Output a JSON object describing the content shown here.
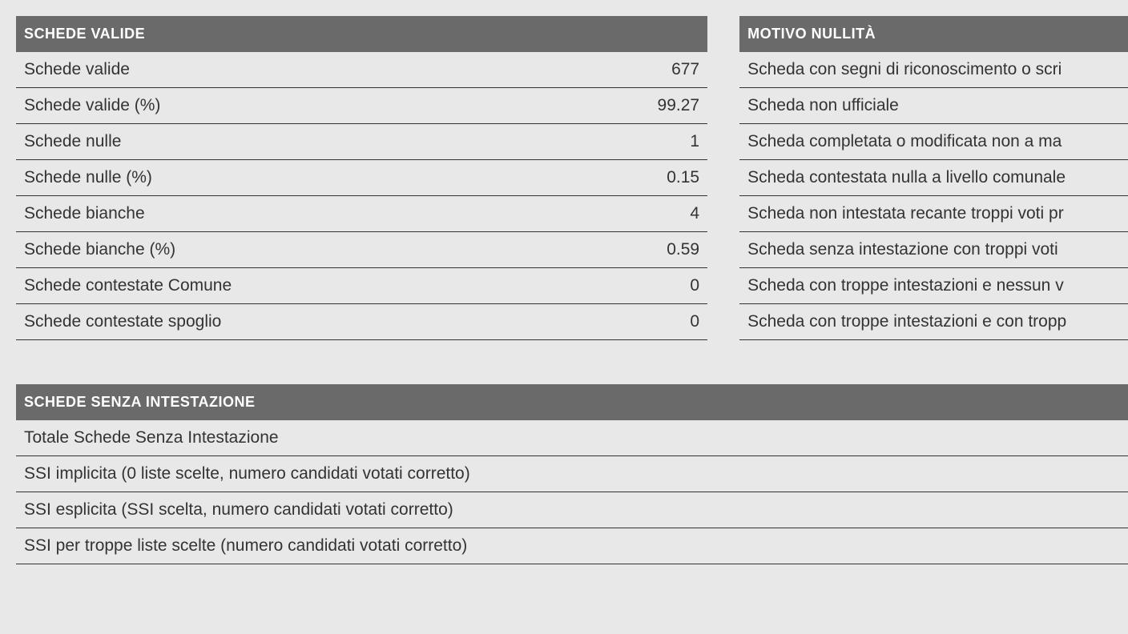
{
  "schedeValide": {
    "header": "SCHEDE VALIDE",
    "rows": [
      {
        "label": "Schede valide",
        "value": "677"
      },
      {
        "label": "Schede valide (%)",
        "value": "99.27"
      },
      {
        "label": "Schede nulle",
        "value": "1"
      },
      {
        "label": "Schede nulle (%)",
        "value": "0.15"
      },
      {
        "label": "Schede bianche",
        "value": "4"
      },
      {
        "label": "Schede bianche (%)",
        "value": "0.59"
      },
      {
        "label": "Schede contestate Comune",
        "value": "0"
      },
      {
        "label": "Schede contestate spoglio",
        "value": "0"
      }
    ]
  },
  "motivoNullita": {
    "header": "MOTIVO NULLITÀ",
    "rows": [
      {
        "label": "Scheda con segni di riconoscimento o scri"
      },
      {
        "label": "Scheda non ufficiale"
      },
      {
        "label": "Scheda completata o modificata non a ma"
      },
      {
        "label": "Scheda contestata nulla a livello comunale"
      },
      {
        "label": "Scheda non intestata recante troppi voti pr"
      },
      {
        "label": "Scheda senza intestazione con troppi voti"
      },
      {
        "label": "Scheda con troppe intestazioni e nessun v"
      },
      {
        "label": "Scheda con troppe intestazioni e con tropp"
      }
    ]
  },
  "schedeSenzaIntestazione": {
    "header": "SCHEDE SENZA INTESTAZIONE",
    "rows": [
      {
        "label": "Totale Schede Senza Intestazione"
      },
      {
        "label": "SSI implicita (0 liste scelte, numero candidati votati corretto)"
      },
      {
        "label": "SSI esplicita (SSI scelta, numero candidati votati corretto)"
      },
      {
        "label": "SSI per troppe liste scelte (numero candidati votati corretto)"
      }
    ]
  },
  "colors": {
    "headerBg": "#6a6a6a",
    "headerText": "#ffffff",
    "bodyBg": "#e8e8e8",
    "text": "#333333",
    "border": "#333333"
  },
  "typography": {
    "headerFontSize": 18,
    "cellFontSize": 21,
    "fontFamily": "Arial"
  }
}
